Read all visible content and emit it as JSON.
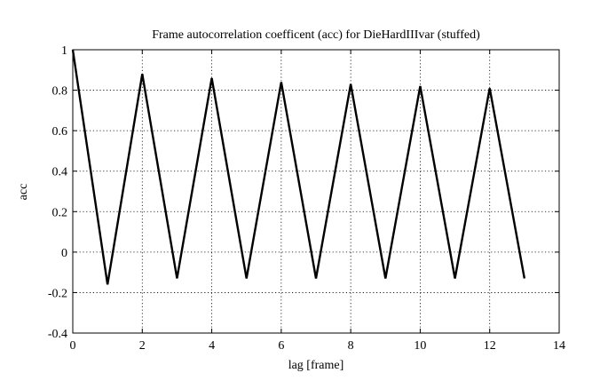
{
  "chart_data": {
    "type": "line",
    "title": "Frame autocorrelation coefficent (acc) for DieHardIIIvar (stuffed)",
    "xlabel": "lag [frame]",
    "ylabel": "acc",
    "xlim": [
      0,
      14
    ],
    "ylim": [
      -0.4,
      1
    ],
    "xticks": [
      "0",
      "2",
      "4",
      "6",
      "8",
      "10",
      "12",
      "14"
    ],
    "yticks": [
      "-0.4",
      "-0.2",
      "0",
      "0.2",
      "0.4",
      "0.6",
      "0.8",
      "1"
    ],
    "grid": true,
    "line_color": "#000000",
    "series": [
      {
        "x": [
          0,
          1,
          2,
          3,
          4,
          5,
          6,
          7,
          8,
          9,
          10,
          11,
          12,
          13
        ],
        "y": [
          1.0,
          -0.16,
          0.88,
          -0.13,
          0.86,
          -0.13,
          0.84,
          -0.13,
          0.83,
          -0.13,
          0.82,
          -0.13,
          0.81,
          -0.13
        ]
      }
    ]
  }
}
